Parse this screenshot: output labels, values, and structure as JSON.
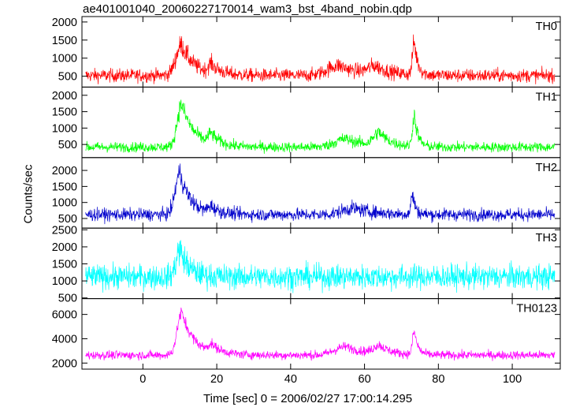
{
  "chart_data": {
    "type": "line",
    "title": "ae401001040_20060227170014_wam3_bst_4band_nobin.qdp",
    "xlabel": "Time [sec] 0 = 2006/02/27 17:00:14.295",
    "ylabel": "Counts/sec",
    "xlim": [
      -16.5,
      113
    ],
    "xticks": [
      0,
      20,
      40,
      60,
      80,
      100
    ],
    "grid": false,
    "panels": [
      {
        "name": "TH0",
        "color": "#ff0000",
        "ylim": [
          200,
          2150
        ],
        "yticks": [
          500,
          1000,
          1500,
          2000
        ],
        "baseline": 520,
        "noise": 170,
        "burst": [
          {
            "t": 10.5,
            "amp": 850,
            "rise": 1.5,
            "decay": 3.5
          },
          {
            "t": 18.5,
            "amp": 250,
            "rise": 0.8,
            "decay": 2.5
          },
          {
            "t": 53.0,
            "amp": 280,
            "rise": 3.0,
            "decay": 6.0
          },
          {
            "t": 63.0,
            "amp": 220,
            "rise": 2.0,
            "decay": 4.0
          },
          {
            "t": 73.5,
            "amp": 900,
            "rise": 0.5,
            "decay": 1.0
          }
        ]
      },
      {
        "name": "TH1",
        "color": "#00ff00",
        "ylim": [
          100,
          2250
        ],
        "yticks": [
          500,
          1000,
          1500,
          2000
        ],
        "baseline": 420,
        "noise": 140,
        "burst": [
          {
            "t": 10.5,
            "amp": 1300,
            "rise": 1.2,
            "decay": 3.5
          },
          {
            "t": 18.5,
            "amp": 300,
            "rise": 0.8,
            "decay": 2.5
          },
          {
            "t": 55.0,
            "amp": 250,
            "rise": 3.0,
            "decay": 6.0
          },
          {
            "t": 64.0,
            "amp": 400,
            "rise": 1.5,
            "decay": 3.0
          },
          {
            "t": 73.5,
            "amp": 950,
            "rise": 0.5,
            "decay": 1.0
          }
        ]
      },
      {
        "name": "TH2",
        "color": "#0000cc",
        "ylim": [
          200,
          2400
        ],
        "yticks": [
          500,
          1000,
          1500,
          2000
        ],
        "baseline": 620,
        "noise": 180,
        "burst": [
          {
            "t": 10.0,
            "amp": 1300,
            "rise": 1.2,
            "decay": 3.0
          },
          {
            "t": 18.5,
            "amp": 200,
            "rise": 0.8,
            "decay": 2.5
          },
          {
            "t": 57.0,
            "amp": 200,
            "rise": 3.0,
            "decay": 6.0
          },
          {
            "t": 73.0,
            "amp": 650,
            "rise": 0.4,
            "decay": 0.8
          }
        ]
      },
      {
        "name": "TH3",
        "color": "#00ffff",
        "ylim": [
          480,
          2550
        ],
        "yticks": [
          500,
          1000,
          1500,
          2000,
          2500
        ],
        "baseline": 1120,
        "noise": 330,
        "burst": [
          {
            "t": 10.0,
            "amp": 800,
            "rise": 1.0,
            "decay": 2.5
          }
        ]
      },
      {
        "name": "TH0123",
        "color": "#ff00ff",
        "ylim": [
          1500,
          7300
        ],
        "yticks": [
          2000,
          4000,
          6000
        ],
        "baseline": 2650,
        "noise": 330,
        "burst": [
          {
            "t": 10.5,
            "amp": 3500,
            "rise": 1.2,
            "decay": 3.5
          },
          {
            "t": 18.5,
            "amp": 600,
            "rise": 0.8,
            "decay": 3.0
          },
          {
            "t": 55.0,
            "amp": 700,
            "rise": 3.0,
            "decay": 6.0
          },
          {
            "t": 64.0,
            "amp": 700,
            "rise": 1.5,
            "decay": 3.0
          },
          {
            "t": 73.5,
            "amp": 1900,
            "rise": 0.5,
            "decay": 1.0
          }
        ]
      }
    ]
  }
}
